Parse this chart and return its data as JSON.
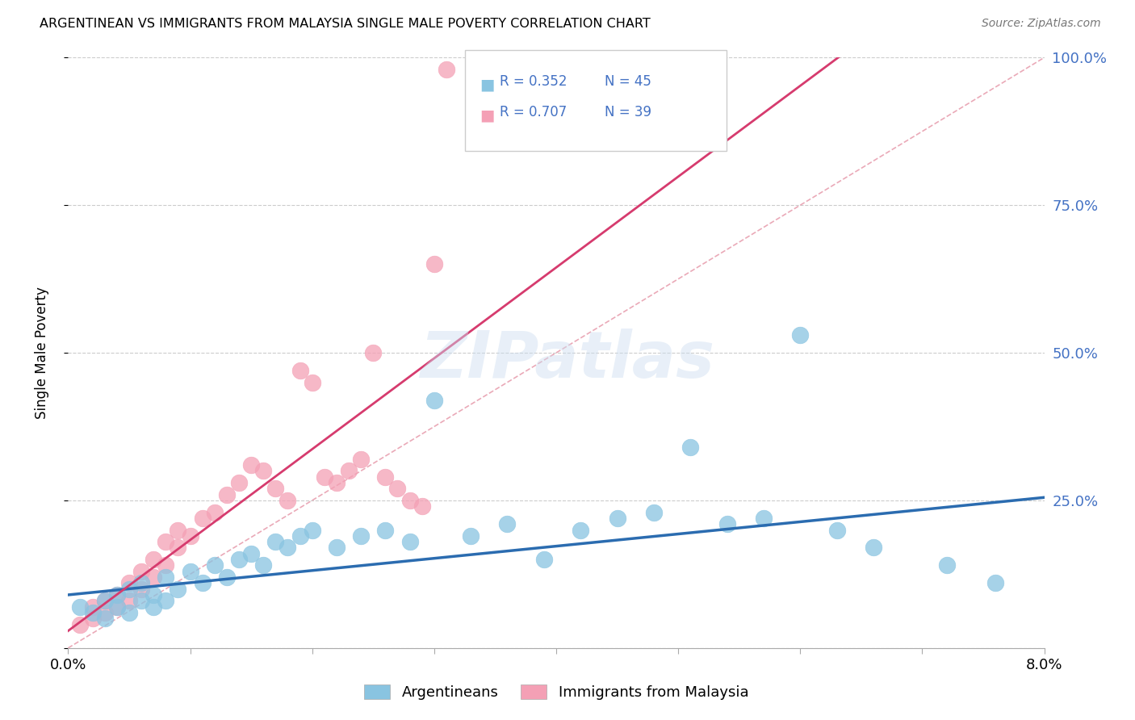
{
  "title": "ARGENTINEAN VS IMMIGRANTS FROM MALAYSIA SINGLE MALE POVERTY CORRELATION CHART",
  "source": "Source: ZipAtlas.com",
  "ylabel": "Single Male Poverty",
  "legend_blue_r": "R = 0.352",
  "legend_blue_n": "N = 45",
  "legend_pink_r": "R = 0.707",
  "legend_pink_n": "N = 39",
  "blue_color": "#89c4e1",
  "pink_color": "#f4a0b5",
  "blue_line_color": "#2b6cb0",
  "pink_line_color": "#d63b6e",
  "diagonal_color": "#e8a0b0",
  "background_color": "#ffffff",
  "grid_color": "#cccccc",
  "text_color_blue": "#4472c4",
  "text_color_pink": "#c0385a",
  "xlim": [
    0.0,
    0.08
  ],
  "ylim": [
    0.0,
    1.0
  ],
  "blue_scatter_x": [
    0.001,
    0.002,
    0.003,
    0.003,
    0.004,
    0.004,
    0.005,
    0.005,
    0.006,
    0.006,
    0.007,
    0.007,
    0.008,
    0.008,
    0.009,
    0.01,
    0.011,
    0.012,
    0.013,
    0.014,
    0.015,
    0.016,
    0.017,
    0.018,
    0.019,
    0.02,
    0.022,
    0.024,
    0.026,
    0.028,
    0.03,
    0.033,
    0.036,
    0.039,
    0.042,
    0.045,
    0.048,
    0.051,
    0.054,
    0.057,
    0.06,
    0.063,
    0.066,
    0.072,
    0.076
  ],
  "blue_scatter_y": [
    0.07,
    0.06,
    0.08,
    0.05,
    0.09,
    0.07,
    0.1,
    0.06,
    0.08,
    0.11,
    0.09,
    0.07,
    0.12,
    0.08,
    0.1,
    0.13,
    0.11,
    0.14,
    0.12,
    0.15,
    0.16,
    0.14,
    0.18,
    0.17,
    0.19,
    0.2,
    0.17,
    0.19,
    0.2,
    0.18,
    0.42,
    0.19,
    0.21,
    0.15,
    0.2,
    0.22,
    0.23,
    0.34,
    0.21,
    0.22,
    0.53,
    0.2,
    0.17,
    0.14,
    0.11
  ],
  "pink_scatter_x": [
    0.001,
    0.002,
    0.002,
    0.003,
    0.003,
    0.004,
    0.004,
    0.005,
    0.005,
    0.006,
    0.006,
    0.007,
    0.007,
    0.008,
    0.008,
    0.009,
    0.009,
    0.01,
    0.011,
    0.012,
    0.013,
    0.014,
    0.015,
    0.016,
    0.017,
    0.018,
    0.019,
    0.02,
    0.021,
    0.022,
    0.023,
    0.024,
    0.025,
    0.026,
    0.027,
    0.028,
    0.029,
    0.03,
    0.031
  ],
  "pink_scatter_y": [
    0.04,
    0.05,
    0.07,
    0.06,
    0.08,
    0.07,
    0.09,
    0.08,
    0.11,
    0.1,
    0.13,
    0.12,
    0.15,
    0.14,
    0.18,
    0.17,
    0.2,
    0.19,
    0.22,
    0.23,
    0.26,
    0.28,
    0.31,
    0.3,
    0.27,
    0.25,
    0.47,
    0.45,
    0.29,
    0.28,
    0.3,
    0.32,
    0.5,
    0.29,
    0.27,
    0.25,
    0.24,
    0.65,
    0.98
  ],
  "blue_trend": [
    0.09,
    0.255
  ],
  "pink_trend_start": 0.02,
  "pink_trend_end_x": 0.031,
  "xtick_vals": [
    0.0,
    0.01,
    0.02,
    0.03,
    0.04,
    0.05,
    0.06,
    0.07,
    0.08
  ],
  "ytick_vals": [
    0.0,
    0.25,
    0.5,
    0.75,
    1.0
  ],
  "right_ytick_labels": [
    "",
    "25.0%",
    "50.0%",
    "75.0%",
    "100.0%"
  ]
}
